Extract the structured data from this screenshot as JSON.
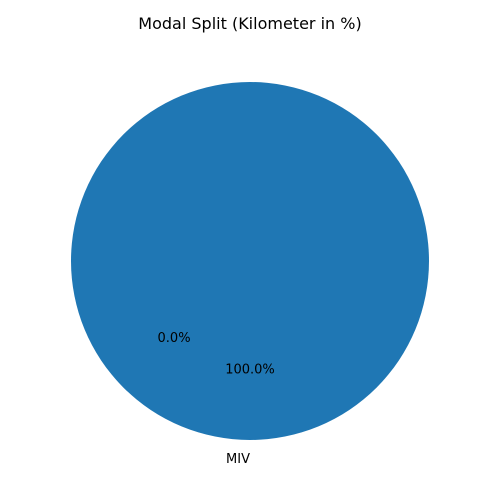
{
  "chart_data": {
    "type": "pie",
    "title": "Modal Split (Kilometer in %)",
    "slices": [
      {
        "label": "",
        "value": 0.0,
        "pct_label": "0.0%",
        "color": "#ff7f0e"
      },
      {
        "label": "MIV",
        "value": 100.0,
        "pct_label": "100.0%",
        "color": "#1f77b4"
      }
    ],
    "legend": false
  }
}
